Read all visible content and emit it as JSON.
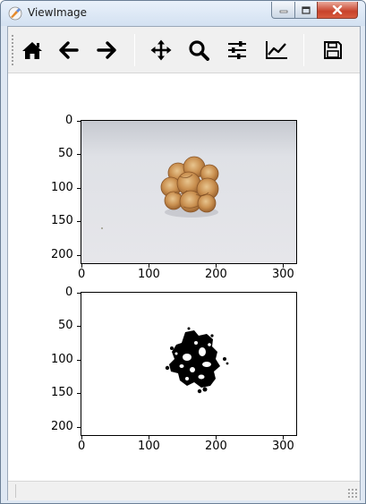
{
  "window": {
    "title": "ViewImage"
  },
  "toolbar": {
    "buttons": [
      {
        "name": "home-button",
        "icon": "home-icon"
      },
      {
        "name": "back-button",
        "icon": "arrow-left-icon"
      },
      {
        "name": "forward-button",
        "icon": "arrow-right-icon"
      },
      {
        "name": "pan-button",
        "icon": "move-icon"
      },
      {
        "name": "zoom-button",
        "icon": "magnifier-icon"
      },
      {
        "name": "configure-subplots-button",
        "icon": "sliders-icon"
      },
      {
        "name": "edit-axes-button",
        "icon": "line-chart-icon"
      },
      {
        "name": "save-button",
        "icon": "floppy-disk-icon"
      }
    ]
  },
  "figure": {
    "subplot_top": {
      "content": "color photo of a walnut on a light gray background",
      "y_ticks": [
        "0",
        "50",
        "100",
        "150",
        "200"
      ],
      "x_ticks": [
        "0",
        "100",
        "200",
        "300"
      ]
    },
    "subplot_bottom": {
      "content": "binary mask (black on white) of the walnut",
      "y_ticks": [
        "0",
        "50",
        "100",
        "150",
        "200"
      ],
      "x_ticks": [
        "0",
        "100",
        "200",
        "300"
      ]
    }
  },
  "chart_data": [
    {
      "type": "heatmap",
      "xlim": [
        0,
        320
      ],
      "ylim": [
        213,
        0
      ],
      "x_ticks": [
        0,
        100,
        200,
        300
      ],
      "y_ticks": [
        0,
        50,
        100,
        150,
        200
      ],
      "image_size": [
        320,
        213
      ],
      "grid": false
    },
    {
      "type": "heatmap",
      "xlim": [
        0,
        320
      ],
      "ylim": [
        213,
        0
      ],
      "x_ticks": [
        0,
        100,
        200,
        300
      ],
      "y_ticks": [
        0,
        50,
        100,
        150,
        200
      ],
      "image_size": [
        320,
        213
      ],
      "grid": false
    }
  ]
}
